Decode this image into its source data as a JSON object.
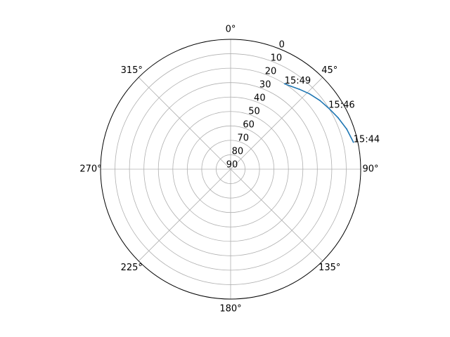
{
  "chart_data": {
    "type": "line",
    "projection": "polar",
    "theta_zero_location": "top",
    "theta_direction": "clockwise",
    "r_axis_inverted": true,
    "rlim": [
      90,
      0
    ],
    "angle_tick_labels": [
      {
        "deg": 0,
        "label": "0°"
      },
      {
        "deg": 45,
        "label": "45°"
      },
      {
        "deg": 90,
        "label": "90°"
      },
      {
        "deg": 135,
        "label": "135°"
      },
      {
        "deg": 180,
        "label": "180°"
      },
      {
        "deg": 225,
        "label": "225°"
      },
      {
        "deg": 270,
        "label": "270°"
      },
      {
        "deg": 315,
        "label": "315°"
      }
    ],
    "radial_tick_labels": [
      "0",
      "10",
      "20",
      "30",
      "40",
      "50",
      "60",
      "70",
      "80",
      "90"
    ],
    "radial_ticks": [
      0,
      10,
      20,
      30,
      40,
      50,
      60,
      70,
      80,
      90
    ],
    "grid": true,
    "series": [
      {
        "color": "#1f77b4",
        "points": [
          {
            "azimuth_deg": 77.6,
            "elevation": 3
          },
          {
            "azimuth_deg": 70.9,
            "elevation": 5
          },
          {
            "azimuth_deg": 64.5,
            "elevation": 7.5
          },
          {
            "azimuth_deg": 58.2,
            "elevation": 10
          },
          {
            "azimuth_deg": 52.4,
            "elevation": 12
          },
          {
            "azimuth_deg": 46.2,
            "elevation": 14.5
          },
          {
            "azimuth_deg": 40.6,
            "elevation": 17
          },
          {
            "azimuth_deg": 35.9,
            "elevation": 19
          },
          {
            "azimuth_deg": 32.2,
            "elevation": 20
          }
        ]
      }
    ],
    "annotations": [
      {
        "label": "15:44",
        "azimuth_deg": 77.6,
        "elevation": 3
      },
      {
        "label": "15:46",
        "azimuth_deg": 57.8,
        "elevation": 10
      },
      {
        "label": "15:49",
        "azimuth_deg": 32.2,
        "elevation": 20
      }
    ]
  }
}
